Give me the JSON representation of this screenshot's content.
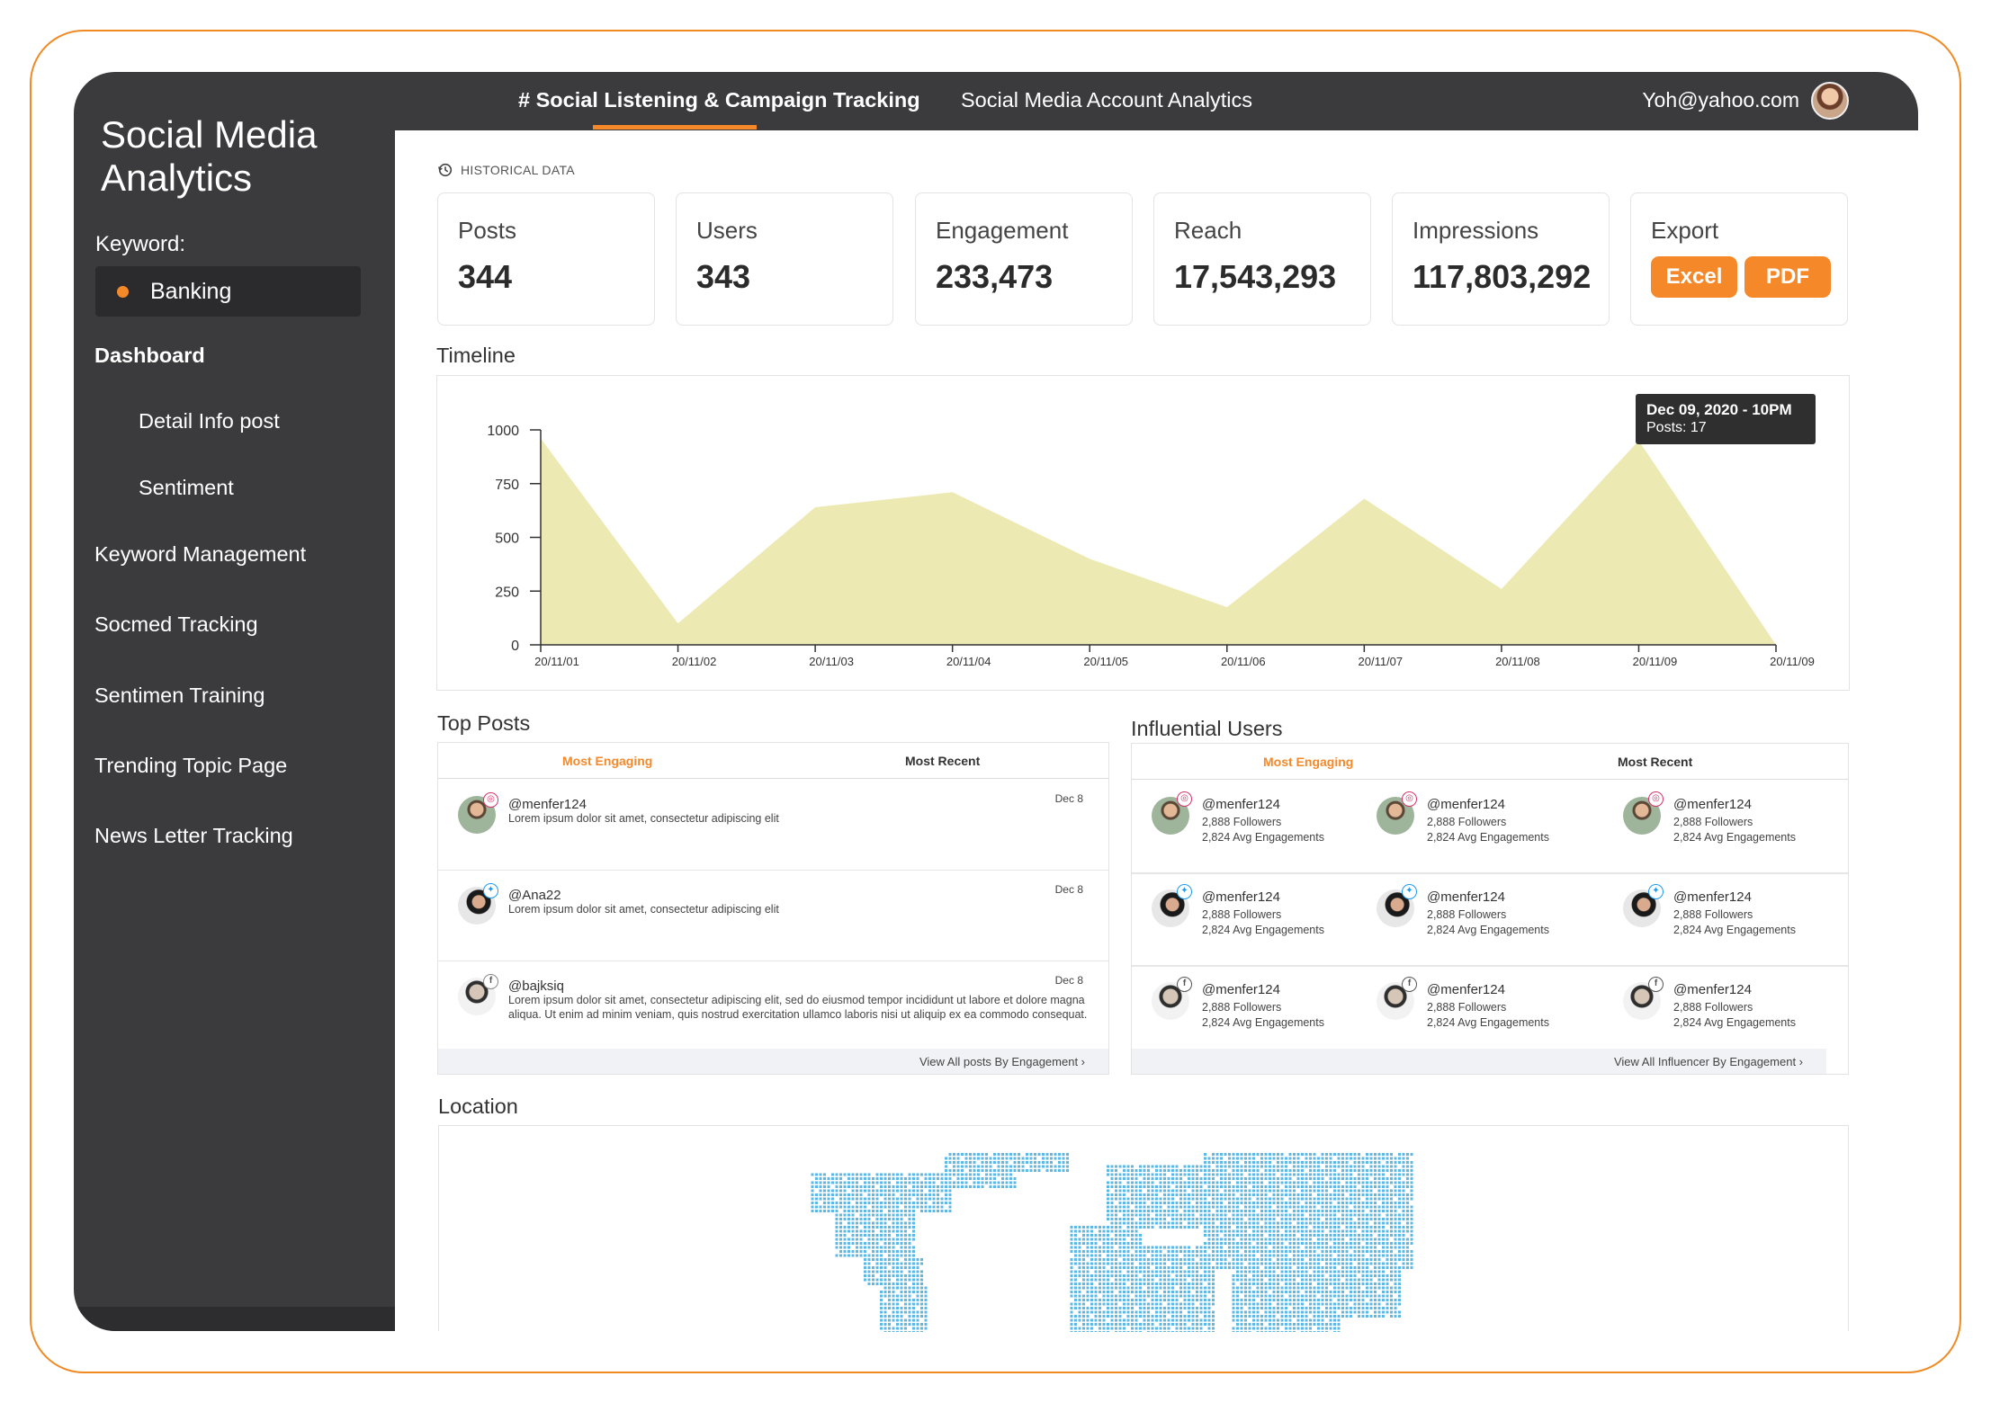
{
  "sidebar": {
    "title_line1": "Social Media",
    "title_line2": "Analytics",
    "keyword_label": "Keyword:",
    "keyword_value": "Banking",
    "items": [
      {
        "label": "Dashboard"
      },
      {
        "label": "Detail Info post"
      },
      {
        "label": "Sentiment"
      },
      {
        "label": "Keyword Management"
      },
      {
        "label": "Socmed Tracking"
      },
      {
        "label": "Sentimen Training"
      },
      {
        "label": "Trending Topic Page"
      },
      {
        "label": "News Letter Tracking"
      }
    ]
  },
  "topbar": {
    "tabs": [
      {
        "label": "# Social Listening & Campaign Tracking",
        "active": true
      },
      {
        "label": "Social Media Account Analytics",
        "active": false
      }
    ],
    "user_email": "Yoh@yahoo.com"
  },
  "historical_label": "HISTORICAL DATA",
  "stats": [
    {
      "label": "Posts",
      "value": "344"
    },
    {
      "label": "Users",
      "value": "343"
    },
    {
      "label": "Engagement",
      "value": "233,473"
    },
    {
      "label": "Reach",
      "value": "17,543,293"
    },
    {
      "label": "Impressions",
      "value": "117,803,292"
    }
  ],
  "export": {
    "label": "Export",
    "excel": "Excel",
    "pdf": "PDF"
  },
  "timeline": {
    "title": "Timeline",
    "tooltip_title": "Dec 09, 2020 - 10PM",
    "tooltip_value": "Posts: 17"
  },
  "chart_data": {
    "type": "area",
    "title": "Timeline",
    "categories": [
      "20/11/01",
      "20/11/02",
      "20/11/03",
      "20/11/04",
      "20/11/05",
      "20/11/06",
      "20/11/07",
      "20/11/08",
      "20/11/09",
      "20/11/09"
    ],
    "yticks": [
      0,
      250,
      500,
      750,
      1000
    ],
    "points": [
      {
        "x": 0,
        "y": 960
      },
      {
        "x": 1,
        "y": 100
      },
      {
        "x": 2,
        "y": 640
      },
      {
        "x": 3,
        "y": 710
      },
      {
        "x": 4,
        "y": 400
      },
      {
        "x": 5,
        "y": 175
      },
      {
        "x": 6,
        "y": 680
      },
      {
        "x": 7,
        "y": 260
      },
      {
        "x": 8,
        "y": 950
      },
      {
        "x": 9,
        "y": 0
      }
    ],
    "ylim": [
      0,
      1000
    ],
    "fill_color": "#ede9b2"
  },
  "top_posts": {
    "title": "Top Posts",
    "tabs": [
      "Most Engaging",
      "Most Recent"
    ],
    "posts": [
      {
        "user": "@menfer124",
        "text": "Lorem ipsum dolor sit amet, consectetur adipiscing elit",
        "date": "Dec 8",
        "platform": "instagram-icon",
        "avatar": "av-a"
      },
      {
        "user": "@Ana22",
        "text": "Lorem ipsum dolor sit amet, consectetur adipiscing elit",
        "date": "Dec 8",
        "platform": "twitter-icon",
        "avatar": "av-b"
      },
      {
        "user": "@bajksiq",
        "text": "Lorem ipsum dolor sit amet, consectetur adipiscing elit, sed do eiusmod tempor incididunt ut labore et dolore magna aliqua. Ut enim ad minim veniam, quis nostrud exercitation ullamco laboris nisi ut aliquip ex ea commodo consequat.",
        "date": "Dec 8",
        "platform": "facebook-icon",
        "avatar": "av-c"
      }
    ],
    "footer": "View All posts By Engagement ›"
  },
  "influential_users": {
    "title": "Influential Users",
    "tabs": [
      "Most Engaging",
      "Most Recent"
    ],
    "rows": [
      {
        "platform": "instagram-icon",
        "avatar": "av-a",
        "users": [
          {
            "name": "@menfer124",
            "followers": "2,888 Followers",
            "engagements": "2,824 Avg Engagements"
          },
          {
            "name": "@menfer124",
            "followers": "2,888 Followers",
            "engagements": "2,824 Avg Engagements"
          },
          {
            "name": "@menfer124",
            "followers": "2,888 Followers",
            "engagements": "2,824 Avg Engagements"
          }
        ]
      },
      {
        "platform": "twitter-icon",
        "avatar": "av-b",
        "users": [
          {
            "name": "@menfer124",
            "followers": "2,888 Followers",
            "engagements": "2,824 Avg Engagements"
          },
          {
            "name": "@menfer124",
            "followers": "2,888 Followers",
            "engagements": "2,824 Avg Engagements"
          },
          {
            "name": "@menfer124",
            "followers": "2,888 Followers",
            "engagements": "2,824 Avg Engagements"
          }
        ]
      },
      {
        "platform": "facebook-icon",
        "avatar": "av-c",
        "users": [
          {
            "name": "@menfer124",
            "followers": "2,888 Followers",
            "engagements": "2,824 Avg Engagements"
          },
          {
            "name": "@menfer124",
            "followers": "2,888 Followers",
            "engagements": "2,824 Avg Engagements"
          },
          {
            "name": "@menfer124",
            "followers": "2,888 Followers",
            "engagements": "2,824 Avg Engagements"
          }
        ]
      }
    ],
    "footer": "View All Influencer By Engagement ›"
  },
  "location": {
    "title": "Location",
    "map_color": "#5fb8e4"
  },
  "colors": {
    "accent": "#f5892a",
    "sidebar": "#3b3b3d",
    "frame": "#f08a24"
  }
}
